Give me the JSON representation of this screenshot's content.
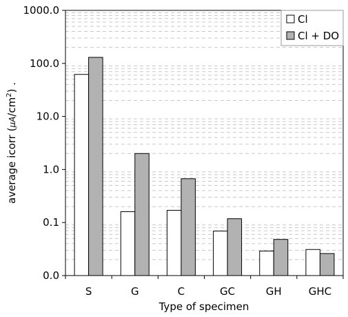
{
  "chart_data": {
    "type": "bar",
    "xlabel": "Type of specimen",
    "ylabel_main": "average icorr (",
    "ylabel_unit_a": "μA",
    "ylabel_unit_b": "/cm",
    "ylabel_sup": "2",
    "ylabel_tail": ") .",
    "yscale": "log",
    "ylim": [
      0.01,
      1000
    ],
    "yticks": [
      0.01,
      0.1,
      1,
      10,
      100,
      1000
    ],
    "ytick_labels": [
      "0.0",
      "0.1",
      "1.0",
      "10.0",
      "100.0",
      "1000.0"
    ],
    "grid": "horizontal dashed minor lines",
    "legend_position": "top-right",
    "categories": [
      "S",
      "G",
      "C",
      "GC",
      "GH",
      "GHC"
    ],
    "series": [
      {
        "name": "Cl",
        "color": "#ffffff",
        "values": [
          62,
          0.16,
          0.17,
          0.069,
          0.029,
          0.031
        ]
      },
      {
        "name": "Cl + DO",
        "color": "#b2b2b2",
        "values": [
          130,
          2.0,
          0.67,
          0.118,
          0.048,
          0.026
        ]
      }
    ]
  }
}
